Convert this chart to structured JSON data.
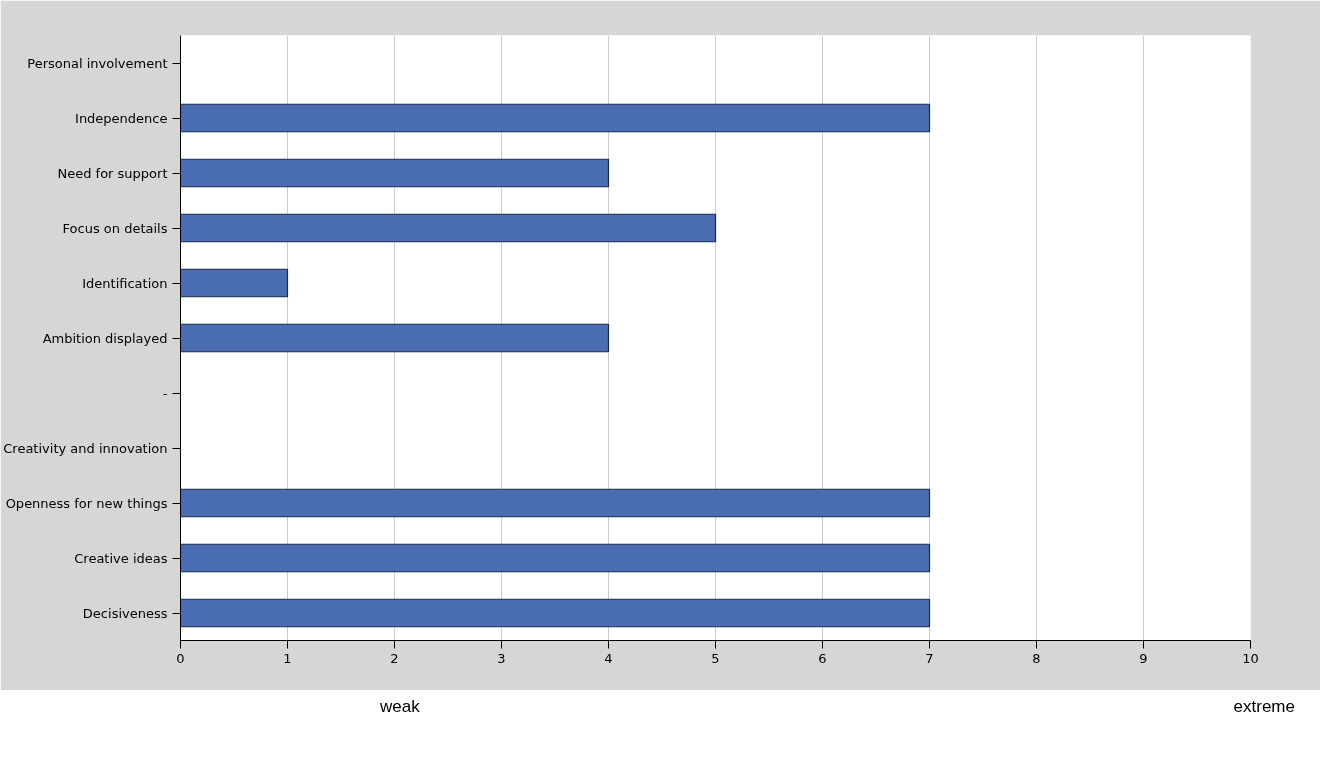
{
  "chart_data": {
    "type": "bar",
    "orientation": "horizontal",
    "categories": [
      "Personal involvement",
      "Independence",
      "Need for support",
      "Focus on details",
      "Identification",
      "Ambition displayed",
      "-",
      "Creativity and innovation",
      "Openness for new things",
      "Creative ideas",
      "Decisiveness"
    ],
    "values": [
      null,
      7,
      4,
      5,
      1,
      4,
      null,
      null,
      7,
      7,
      7
    ],
    "color": "#4a6cb3",
    "xlim": [
      0,
      10
    ],
    "xticks": [
      0,
      1,
      2,
      3,
      4,
      5,
      6,
      7,
      8,
      9,
      10
    ],
    "grid": "x",
    "annotations": [
      "weak",
      "extreme"
    ]
  }
}
